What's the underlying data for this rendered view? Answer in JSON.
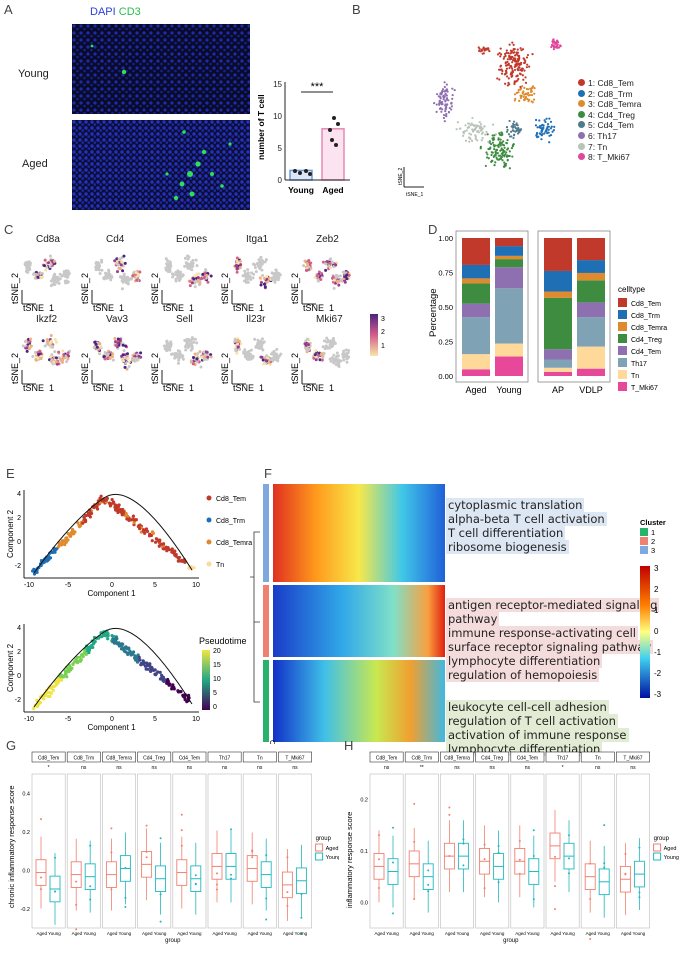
{
  "panels": {
    "A": "A",
    "B": "B",
    "C": "C",
    "D": "D",
    "E": "E",
    "F": "F",
    "G": "G",
    "H": "H"
  },
  "panelA": {
    "stain_dapi": "DAPI",
    "stain_cd3": "CD3",
    "row_young": "Young",
    "row_aged": "Aged",
    "ylabel": "number of T cell",
    "significance": "***",
    "categories": [
      "Young",
      "Aged"
    ],
    "bar_values": [
      1.5,
      8
    ],
    "yticks": [
      "0",
      "5",
      "10",
      "15"
    ]
  },
  "panelB": {
    "legend": [
      "1: Cd8_Tem",
      "2: Cd8_Trm",
      "3: Cd8_Temra",
      "4: Cd4_Treg",
      "5: Cd4_Tem",
      "6: Th17",
      "7: Tn",
      "8: T_Mki67"
    ],
    "colors": [
      "#c0392b",
      "#1f6fb5",
      "#e08a2e",
      "#3d8c40",
      "#4f7a8c",
      "#8e6fb0",
      "#b8c4b8",
      "#e0489a"
    ],
    "axis_x": "tSNE_1",
    "axis_y": "tSNE_2"
  },
  "panelC": {
    "genes": [
      "Cd8a",
      "Cd4",
      "Eomes",
      "Itga1",
      "Zeb2",
      "Ikzf2",
      "Vav3",
      "Sell",
      "Il23r",
      "Mki67"
    ],
    "axis_x": "tSNE_1",
    "axis_y": "tSNE_2",
    "scale_ticks": [
      "3",
      "2",
      "1"
    ]
  },
  "panelD": {
    "ylabel": "Percentage",
    "yticks": [
      "0.00",
      "0.25",
      "0.50",
      "0.75",
      "1.00"
    ],
    "legend_title": "celltype",
    "celltypes": [
      "Cd8_Tem",
      "Cd8_Trm",
      "Cd8_Temra",
      "Cd4_Treg",
      "Cd4_Tem",
      "Th17",
      "Tn",
      "T_Mki67"
    ],
    "colors": [
      "#c0392b",
      "#1f6fb5",
      "#e08a2e",
      "#3d8c40",
      "#8e6fb0",
      "#7fa3b5",
      "#ffd99a",
      "#e8489a"
    ],
    "bars": [
      {
        "name": "Aged",
        "values": [
          0.16,
          0.08,
          0.03,
          0.12,
          0.08,
          0.22,
          0.09,
          0.04
        ]
      },
      {
        "name": "Young",
        "values": [
          0.05,
          0.06,
          0.02,
          0.05,
          0.13,
          0.34,
          0.08,
          0.12
        ]
      },
      {
        "name": "AP",
        "values": [
          0.16,
          0.1,
          0.03,
          0.25,
          0.05,
          0.04,
          0.02,
          0.02
        ]
      },
      {
        "name": "VDLP",
        "values": [
          0.12,
          0.07,
          0.04,
          0.12,
          0.08,
          0.16,
          0.12,
          0.04
        ]
      }
    ],
    "groups": [
      [
        "Aged",
        "Young"
      ],
      [
        "AP",
        "VDLP"
      ]
    ]
  },
  "panelE": {
    "legend": [
      "Cd8_Tem",
      "Cd8_Trm",
      "Cd8_Temra",
      "Tn"
    ],
    "colors": [
      "#c0392b",
      "#1f6fb5",
      "#e08a2e",
      "#ffd99a"
    ],
    "xlabel": "Component 1",
    "ylabel": "Component 2",
    "xticks": [
      "-10",
      "-5",
      "0",
      "5",
      "10"
    ],
    "yticks_top": [
      "4",
      "2",
      "0",
      "-2"
    ],
    "yticks_bottom": [
      "4",
      "2",
      "0",
      "-2"
    ],
    "pseudotime_title": "Pseudotime",
    "pseudotime_ticks": [
      "20",
      "15",
      "10",
      "5",
      "0"
    ]
  },
  "panelF": {
    "cluster_title": "Cluster",
    "clusters": [
      "1",
      "2",
      "3"
    ],
    "cluster_colors": [
      "#27b36b",
      "#f08070",
      "#7fa8e0"
    ],
    "scale_ticks": [
      "3",
      "2",
      "1",
      "0",
      "-1",
      "-2",
      "-3"
    ],
    "col_label": "Cluster",
    "go_terms": [
      {
        "color": "#dde6f3",
        "terms": [
          "cytoplasmic translation",
          "alpha-beta T cell activation",
          "T cell differentiation",
          "ribosome biogenesis"
        ]
      },
      {
        "color": "#f5dcdc",
        "terms": [
          "antigen receptor-mediated signaling",
          "pathway",
          "immune response-activating cell",
          "surface receptor signaling pathway",
          "lymphocyte differentiation",
          "regulation of hemopoiesis"
        ]
      },
      {
        "color": "#e2ecd4",
        "terms": [
          "leukocyte cell-cell adhesion",
          "regulation of T cell activation",
          "activation of immune response",
          "lymphocyte differentiation"
        ]
      }
    ]
  },
  "panelG": {
    "ylabel": "chronic inflammatory response score",
    "xlabel": "group",
    "facets": [
      "Cd8_Tem",
      "Cd8_Trm",
      "Cd8_Temra",
      "Cd4_Treg",
      "Cd4_Tem",
      "Th17",
      "Tn",
      "T_Mki67"
    ],
    "sig": [
      "*",
      "ns",
      "ns",
      "ns",
      "ns",
      "ns",
      "ns",
      "ns"
    ],
    "yticks": [
      "0.4",
      "0.2",
      "0.0",
      "-0.2"
    ],
    "legend_title": "group",
    "legend": [
      "Aged",
      "Young"
    ],
    "colors": [
      "#f08070",
      "#20b8c0"
    ],
    "medians": [
      [
        0.02,
        -0.06
      ],
      [
        0.01,
        0.0
      ],
      [
        0.01,
        0.04
      ],
      [
        0.06,
        -0.01
      ],
      [
        0.02,
        -0.01
      ],
      [
        0.05,
        0.05
      ],
      [
        0.04,
        0.01
      ],
      [
        -0.04,
        -0.02
      ]
    ]
  },
  "panelH": {
    "ylabel": "inflammatory response score",
    "xlabel": "group",
    "facets": [
      "Cd8_Tem",
      "Cd8_Trm",
      "Cd8_Temra",
      "Cd4_Treg",
      "Cd4_Tem",
      "Th17",
      "Tn",
      "T_Mki67"
    ],
    "sig": [
      "ns",
      "**",
      "ns",
      "ns",
      "ns",
      "*",
      "ns",
      "ns"
    ],
    "yticks": [
      "0.2",
      "0.1",
      "0.0"
    ],
    "legend_title": "group",
    "legend": [
      "Aged",
      "Young"
    ],
    "colors": [
      "#f08070",
      "#20b8c0"
    ],
    "medians": [
      [
        0.07,
        0.06
      ],
      [
        0.075,
        0.05
      ],
      [
        0.09,
        0.09
      ],
      [
        0.08,
        0.07
      ],
      [
        0.08,
        0.06
      ],
      [
        0.11,
        0.09
      ],
      [
        0.05,
        0.04
      ],
      [
        0.045,
        0.055
      ]
    ]
  },
  "xpair_label": "Aged Young"
}
